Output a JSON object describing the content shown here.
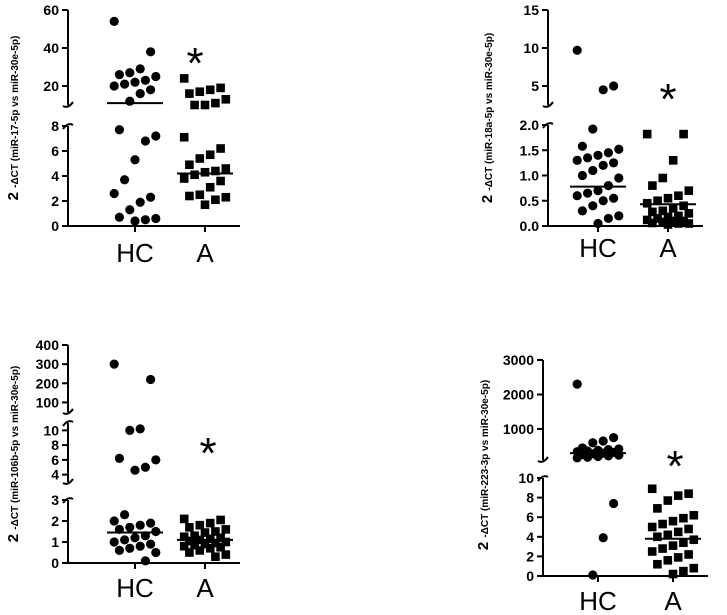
{
  "chart_data": [
    {
      "type": "scatter",
      "ylabel_prefix": "2",
      "ylabel": "-ΔCT (miR-17-5p vs miR-30e-5p)",
      "categories": [
        "HC",
        "A"
      ],
      "significance_marker": "*",
      "segments": [
        {
          "range": [
            0,
            8
          ],
          "ticks": [
            0,
            2,
            4,
            6,
            8
          ]
        },
        {
          "range": [
            10,
            60
          ],
          "ticks": [
            20,
            40,
            60
          ]
        }
      ],
      "series": [
        {
          "values": [
            54,
            38,
            29,
            27,
            26,
            25,
            23,
            22,
            21,
            20,
            18,
            16,
            12,
            7.7,
            7.2,
            6.8,
            5.3,
            3.7,
            2.6,
            2.3,
            1.9,
            1.3,
            0.7,
            0.6,
            0.5,
            0.4
          ],
          "marker": "circle",
          "median": 11
        },
        {
          "values": [
            24,
            19,
            18,
            17,
            16,
            13,
            11,
            10,
            8.3,
            7.1,
            6.2,
            5.7,
            5.4,
            4.9,
            4.6,
            4.4,
            4.3,
            4.1,
            3.8,
            3.6,
            3.1,
            2.5,
            2.4,
            2.3,
            2.1,
            1.7
          ],
          "marker": "square",
          "median": 4.2
        }
      ]
    },
    {
      "type": "scatter",
      "ylabel_prefix": "2",
      "ylabel": "-ΔCT (miR-18a-5p vs miR-30e-5p)",
      "categories": [
        "HC",
        "A"
      ],
      "significance_marker": "*",
      "segments": [
        {
          "range": [
            0,
            2
          ],
          "ticks": [
            0.0,
            0.5,
            1.0,
            1.5,
            2.0
          ]
        },
        {
          "range": [
            2.5,
            15
          ],
          "ticks": [
            5,
            10,
            15
          ]
        }
      ],
      "series": [
        {
          "values": [
            9.7,
            5.0,
            4.5,
            1.92,
            1.58,
            1.52,
            1.45,
            1.4,
            1.35,
            1.3,
            1.25,
            1.2,
            1.1,
            1.0,
            0.95,
            0.8,
            0.7,
            0.65,
            0.6,
            0.55,
            0.5,
            0.4,
            0.3,
            0.2,
            0.15,
            0.05
          ],
          "marker": "circle",
          "median": 0.78
        },
        {
          "values": [
            1.82,
            1.82,
            1.3,
            0.95,
            0.8,
            0.7,
            0.6,
            0.55,
            0.5,
            0.45,
            0.4,
            0.35,
            0.3,
            0.28,
            0.25,
            0.2,
            0.18,
            0.15,
            0.12,
            0.1,
            0.1,
            0.08,
            0.06,
            0.05,
            0.05,
            0.03
          ],
          "marker": "square",
          "median": 0.43
        }
      ]
    },
    {
      "type": "scatter",
      "ylabel_prefix": "2",
      "ylabel": "-ΔCT (miR-106b-5p vs miR-30e-5p)",
      "categories": [
        "HC",
        "A"
      ],
      "significance_marker": "*",
      "segments": [
        {
          "range": [
            0,
            3
          ],
          "ticks": [
            0,
            1,
            2,
            3
          ]
        },
        {
          "range": [
            3,
            11
          ],
          "ticks": [
            4,
            6,
            8,
            10
          ]
        },
        {
          "range": [
            50,
            400
          ],
          "ticks": [
            100,
            200,
            300,
            400
          ]
        }
      ],
      "series": [
        {
          "values": [
            300,
            220,
            10.2,
            10.0,
            6.2,
            6.0,
            5.0,
            4.6,
            2.3,
            2.0,
            1.9,
            1.8,
            1.7,
            1.6,
            1.5,
            1.3,
            1.2,
            1.1,
            1.0,
            0.9,
            0.8,
            0.7,
            0.6,
            0.5,
            0.1
          ],
          "marker": "circle",
          "median": 1.45
        },
        {
          "values": [
            2.1,
            2.05,
            1.9,
            1.8,
            1.7,
            1.6,
            1.5,
            1.45,
            1.3,
            1.25,
            1.2,
            1.15,
            1.1,
            1.05,
            1.0,
            0.95,
            0.9,
            0.85,
            0.8,
            0.75,
            0.7,
            0.6,
            0.5,
            0.4,
            0.3
          ],
          "marker": "square",
          "median": 1.1
        }
      ]
    },
    {
      "type": "scatter",
      "ylabel_prefix": "2",
      "ylabel": "-ΔCT (miR-223-3p vs miR-30e-5p)",
      "categories": [
        "HC",
        "A"
      ],
      "significance_marker": "*",
      "segments": [
        {
          "range": [
            0,
            10
          ],
          "ticks": [
            0,
            2,
            4,
            6,
            8,
            10
          ]
        },
        {
          "range": [
            100,
            3000
          ],
          "ticks": [
            1000,
            2000,
            3000
          ]
        }
      ],
      "series": [
        {
          "values": [
            2300,
            750,
            650,
            600,
            450,
            420,
            400,
            380,
            360,
            340,
            320,
            300,
            280,
            260,
            240,
            220,
            200,
            180,
            160,
            7.4,
            3.9,
            0.1
          ],
          "marker": "circle",
          "median": 300
        },
        {
          "values": [
            8.9,
            8.4,
            8.2,
            7.7,
            6.9,
            6.2,
            5.9,
            5.6,
            5.3,
            5.0,
            4.8,
            4.5,
            4.2,
            4.0,
            3.7,
            3.4,
            3.1,
            2.8,
            2.5,
            2.2,
            1.9,
            1.6,
            1.2,
            0.8,
            0.5,
            0.2
          ],
          "marker": "square",
          "median": 3.8
        }
      ]
    }
  ]
}
